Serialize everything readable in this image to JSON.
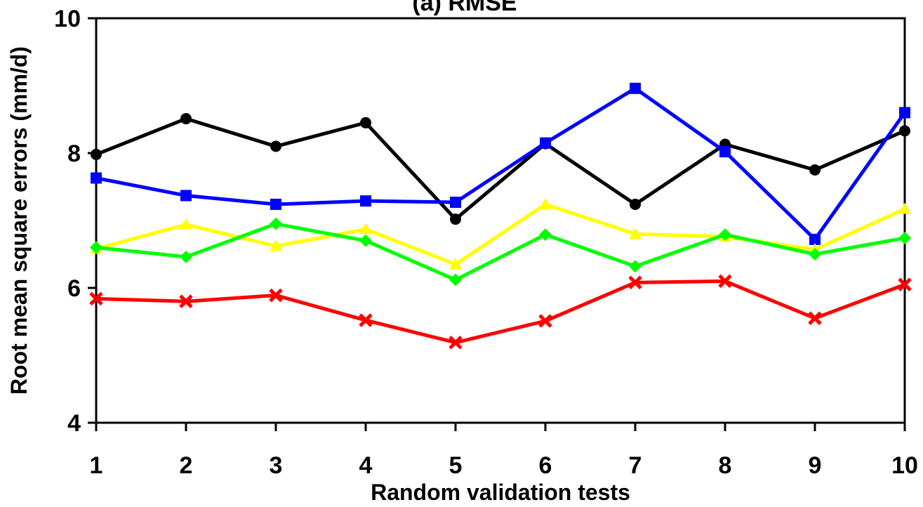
{
  "chart_data": {
    "type": "line",
    "title": "(a) RMSE",
    "xlabel": "Random validation tests",
    "ylabel": "Root mean square errors (mm/d)",
    "x": [
      1,
      2,
      3,
      4,
      5,
      6,
      7,
      8,
      9,
      10
    ],
    "xticks": [
      "1",
      "2",
      "3",
      "4",
      "5",
      "6",
      "7",
      "8",
      "9",
      "10"
    ],
    "yticks": [
      "4",
      "6",
      "8",
      "10"
    ],
    "ylim": [
      4,
      10
    ],
    "grid": false,
    "legend": "none",
    "series": [
      {
        "color": "#000000",
        "marker": "circle",
        "values": [
          7.98,
          8.51,
          8.1,
          8.45,
          7.02,
          8.14,
          7.24,
          8.13,
          7.75,
          8.33
        ]
      },
      {
        "color": "#0000ff",
        "marker": "square",
        "values": [
          7.63,
          7.37,
          7.24,
          7.29,
          7.27,
          8.15,
          8.96,
          8.02,
          6.72,
          8.6
        ]
      },
      {
        "color": "#ffff00",
        "marker": "triangle",
        "values": [
          6.58,
          6.94,
          6.62,
          6.87,
          6.35,
          7.24,
          6.8,
          6.76,
          6.57,
          7.17
        ]
      },
      {
        "color": "#00ff00",
        "marker": "diamond",
        "values": [
          6.6,
          6.46,
          6.95,
          6.7,
          6.12,
          6.79,
          6.32,
          6.79,
          6.5,
          6.74
        ]
      },
      {
        "color": "#ff0000",
        "marker": "x",
        "values": [
          5.84,
          5.8,
          5.89,
          5.52,
          5.19,
          5.51,
          6.08,
          6.1,
          5.55,
          6.05
        ]
      }
    ]
  }
}
